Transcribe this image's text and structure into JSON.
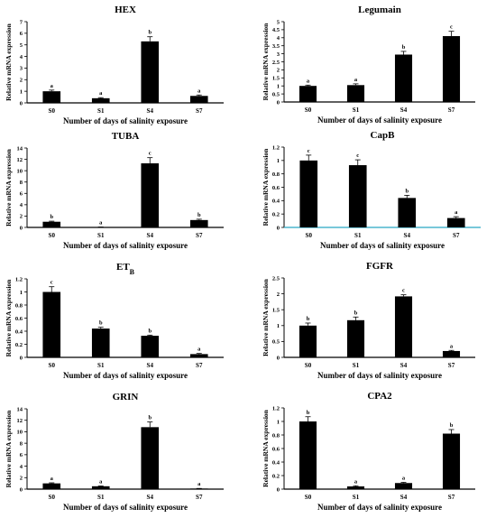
{
  "chart_data": [
    {
      "type": "bar",
      "title": "HEX",
      "xlabel": "Number of days of salinity exposure",
      "ylabel": "Relative mRNA expression",
      "categories": [
        "S0",
        "S1",
        "S4",
        "S7"
      ],
      "values": [
        1.0,
        0.4,
        5.3,
        0.6
      ],
      "errors": [
        0.1,
        0.05,
        0.4,
        0.08
      ],
      "significance": [
        "a",
        "a",
        "b",
        "a"
      ],
      "ylim": [
        0,
        7
      ],
      "yticks": [
        "0",
        "1",
        "2",
        "3",
        "4",
        "5",
        "6",
        "7"
      ]
    },
    {
      "type": "bar",
      "title": "Legumain",
      "xlabel": "Number of days of salinity exposure",
      "ylabel": "Relative mRNA expression",
      "categories": [
        "S0",
        "S1",
        "S4",
        "S7"
      ],
      "values": [
        1.0,
        1.05,
        2.95,
        4.1
      ],
      "errors": [
        0.05,
        0.08,
        0.2,
        0.3
      ],
      "significance": [
        "a",
        "a",
        "b",
        "c"
      ],
      "ylim": [
        0,
        5
      ],
      "yticks": [
        "0",
        "0.5",
        "1",
        "1.5",
        "2",
        "2.5",
        "3",
        "3.5",
        "4",
        "4.5",
        "5"
      ]
    },
    {
      "type": "bar",
      "title": "TUBA",
      "xlabel": "Number of days of salinity exposure",
      "ylabel": "Relative mRNA expression",
      "categories": [
        "S0",
        "S1",
        "S4",
        "S7"
      ],
      "values": [
        1.0,
        0.05,
        11.3,
        1.3
      ],
      "errors": [
        0.1,
        0.02,
        1.0,
        0.15
      ],
      "significance": [
        "b",
        "a",
        "c",
        "b"
      ],
      "ylim": [
        0,
        14
      ],
      "yticks": [
        "0",
        "2",
        "4",
        "6",
        "8",
        "10",
        "12",
        "14"
      ]
    },
    {
      "type": "bar",
      "title": "CapB",
      "xlabel": "Number of days of salinity exposure",
      "ylabel": "Relative mRNA expression",
      "categories": [
        "S0",
        "S1",
        "S4",
        "S7"
      ],
      "values": [
        1.0,
        0.93,
        0.44,
        0.14
      ],
      "errors": [
        0.08,
        0.08,
        0.04,
        0.02
      ],
      "significance": [
        "c",
        "c",
        "b",
        "a"
      ],
      "ylim": [
        0,
        1.2
      ],
      "yticks": [
        "0",
        "0.2",
        "0.4",
        "0.6",
        "0.8",
        "1",
        "1.2"
      ]
    },
    {
      "type": "bar",
      "title": "ET",
      "title_sub": "B",
      "xlabel": "Number of days of salinity exposure",
      "ylabel": "Relative mRNA expression",
      "categories": [
        "S0",
        "S1",
        "S4",
        "S7"
      ],
      "values": [
        1.0,
        0.44,
        0.33,
        0.05
      ],
      "errors": [
        0.08,
        0.02,
        0.01,
        0.01
      ],
      "significance": [
        "c",
        "b",
        "b",
        "a"
      ],
      "ylim": [
        0,
        1.2
      ],
      "yticks": [
        "0",
        "0.2",
        "0.4",
        "0.6",
        "0.8",
        "1",
        "1.2"
      ]
    },
    {
      "type": "bar",
      "title": "FGFR",
      "xlabel": "Number of days of salinity exposure",
      "ylabel": "Relative mRNA expression",
      "categories": [
        "S0",
        "S1",
        "S4",
        "S7"
      ],
      "values": [
        1.0,
        1.17,
        1.92,
        0.2
      ],
      "errors": [
        0.08,
        0.1,
        0.05,
        0.02
      ],
      "significance": [
        "b",
        "b",
        "c",
        "a"
      ],
      "ylim": [
        0,
        2.5
      ],
      "yticks": [
        "0",
        "0.5",
        "1",
        "1.5",
        "2",
        "2.5"
      ]
    },
    {
      "type": "bar",
      "title": "GRIN",
      "xlabel": "Number of days of salinity exposure",
      "ylabel": "Relative mRNA expression",
      "categories": [
        "S0",
        "S1",
        "S4",
        "S7"
      ],
      "values": [
        1.0,
        0.5,
        10.8,
        0.1
      ],
      "errors": [
        0.1,
        0.05,
        0.9,
        0.02
      ],
      "significance": [
        "a",
        "a",
        "b",
        "a"
      ],
      "ylim": [
        0,
        14
      ],
      "yticks": [
        "0",
        "2",
        "4",
        "6",
        "8",
        "10",
        "12",
        "14"
      ]
    },
    {
      "type": "bar",
      "title": "CPA2",
      "xlabel": "Number of days of salinity exposure",
      "ylabel": "Relative mRNA expression",
      "categories": [
        "S0",
        "S1",
        "S4",
        "S7"
      ],
      "values": [
        1.0,
        0.04,
        0.09,
        0.82
      ],
      "errors": [
        0.07,
        0.01,
        0.01,
        0.06
      ],
      "significance": [
        "b",
        "a",
        "a",
        "b"
      ],
      "ylim": [
        0,
        1.2
      ],
      "yticks": [
        "0",
        "0.2",
        "0.4",
        "0.6",
        "0.8",
        "1",
        "1.2"
      ]
    }
  ]
}
